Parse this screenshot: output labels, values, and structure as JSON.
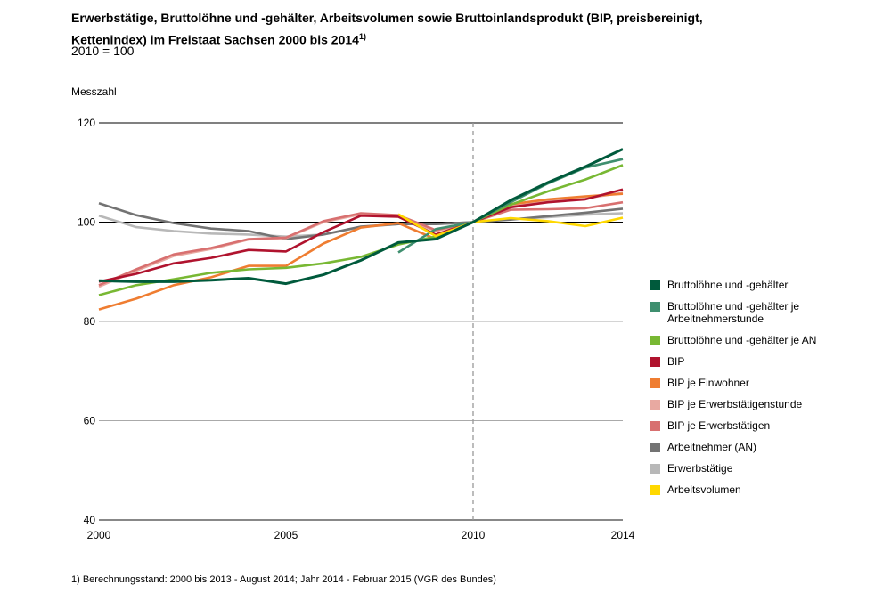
{
  "chart_data": {
    "type": "line",
    "title": "Erwerbstätige, Bruttolöhne und -gehälter, Arbeitsvolumen sowie Bruttoinlandsprodukt (BIP, preisbereinigt, Kettenindex) im Freistaat Sachsen 2000 bis 2014",
    "title_footnote_mark": "1)",
    "subtitle": "2010 = 100",
    "ylabel": "Messzahl",
    "xlabel": "",
    "xlim": [
      2000,
      2014
    ],
    "ylim": [
      40,
      120
    ],
    "yticks": [
      40,
      60,
      80,
      100,
      120
    ],
    "xticks": [
      2000,
      2005,
      2010,
      2014
    ],
    "reference_line_y": 100,
    "reference_line_x": 2010,
    "grid": "horizontal",
    "legend_position": "right",
    "x": [
      2000,
      2001,
      2002,
      2003,
      2004,
      2005,
      2006,
      2007,
      2008,
      2009,
      2010,
      2011,
      2012,
      2013,
      2014
    ],
    "series": [
      {
        "name": "Bruttolöhne und -gehälter",
        "color": "#005a3c",
        "values": [
          88.2,
          88.0,
          88.0,
          88.3,
          88.7,
          87.6,
          89.4,
          92.3,
          95.9,
          96.6,
          100,
          104.4,
          108.0,
          111.2,
          114.7
        ]
      },
      {
        "name": "Bruttolöhne und -gehälter je Arbeitnehmerstunde",
        "color": "#3f8f6f",
        "values": [
          null,
          null,
          null,
          null,
          null,
          null,
          null,
          null,
          93.9,
          98.6,
          100,
          104.0,
          107.8,
          111.0,
          112.7
        ]
      },
      {
        "name": "Bruttolöhne und -gehälter je AN",
        "color": "#78b833",
        "values": [
          85.3,
          87.3,
          88.5,
          89.8,
          90.5,
          90.8,
          91.7,
          93.0,
          95.5,
          97.1,
          100,
          103.5,
          106.2,
          108.6,
          111.5
        ]
      },
      {
        "name": "BIP",
        "color": "#b0132e",
        "values": [
          88.0,
          89.6,
          91.7,
          92.8,
          94.4,
          94.1,
          98.0,
          101.3,
          101.1,
          97.5,
          100,
          103.0,
          104.0,
          104.6,
          106.6
        ]
      },
      {
        "name": "BIP je Einwohner",
        "color": "#ef7d31",
        "values": [
          82.4,
          84.6,
          87.3,
          88.9,
          91.2,
          91.2,
          95.7,
          98.9,
          99.8,
          96.6,
          100,
          103.6,
          104.6,
          105.2,
          105.7
        ]
      },
      {
        "name": "BIP je Erwerbstätigenstunde",
        "color": "#e8a9a1",
        "values": [
          87.0,
          90.2,
          93.2,
          94.6,
          96.5,
          96.8,
          100.0,
          101.6,
          101.2,
          98.2,
          100,
          103.2,
          104.2,
          104.8,
          105.9
        ]
      },
      {
        "name": "BIP je Erwerbstätigen",
        "color": "#d87070",
        "values": [
          87.3,
          90.5,
          93.5,
          94.8,
          96.6,
          96.9,
          100.2,
          101.8,
          101.4,
          98.4,
          100,
          102.5,
          102.6,
          102.8,
          104.0
        ]
      },
      {
        "name": "Arbeitnehmer (AN)",
        "color": "#737373",
        "values": [
          103.8,
          101.4,
          99.8,
          98.7,
          98.2,
          96.6,
          97.5,
          99.1,
          99.6,
          99.6,
          100,
          100.5,
          101.2,
          101.9,
          102.7
        ]
      },
      {
        "name": "Erwerbstätige",
        "color": "#b8b8b8",
        "values": [
          101.3,
          99.0,
          98.2,
          97.7,
          97.5,
          97.1,
          97.5,
          99.0,
          99.6,
          99.6,
          100,
          100.6,
          101.0,
          101.5,
          101.8
        ]
      },
      {
        "name": "Arbeitsvolumen",
        "color": "#ffd800",
        "values": [
          null,
          null,
          null,
          null,
          null,
          null,
          null,
          null,
          101.6,
          97.2,
          100,
          100.8,
          100.2,
          99.2,
          100.9
        ]
      }
    ],
    "draw_order": [
      8,
      7,
      5,
      6,
      4,
      3,
      2,
      1,
      9,
      0
    ]
  },
  "footnote": "1) Berechnungsstand: 2000 bis 2013 - August 2014; Jahr 2014 - Februar 2015 (VGR des Bundes)"
}
